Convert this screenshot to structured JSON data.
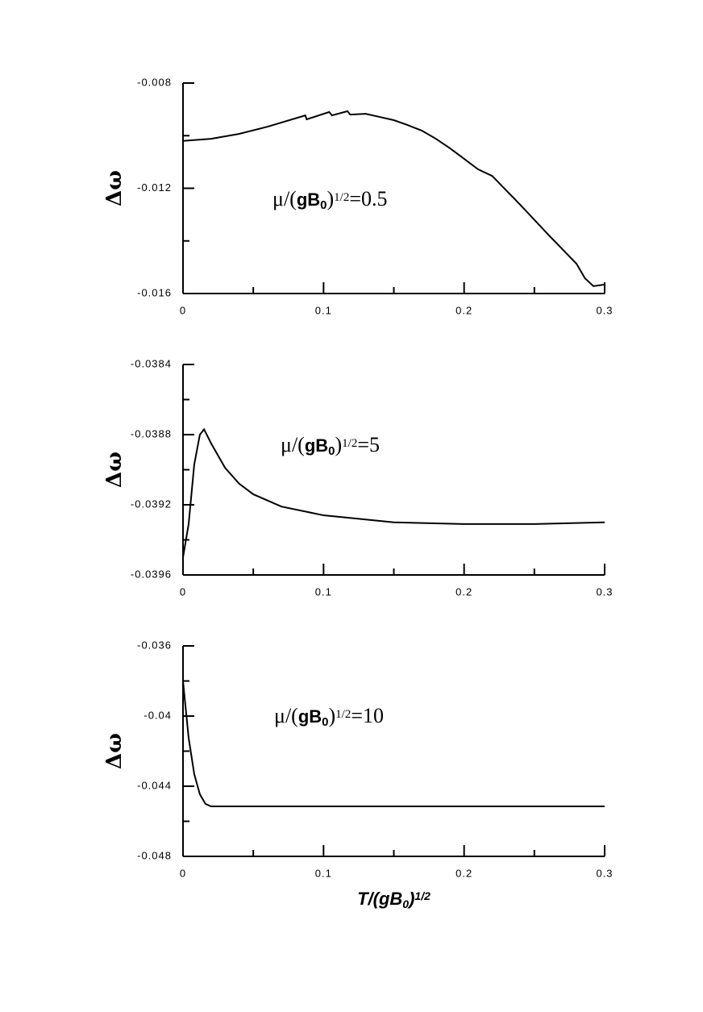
{
  "chart_data": [
    {
      "type": "line",
      "y_label": "Δω",
      "annotation": [
        {
          "text": "μ/("
        },
        {
          "text": "gB",
          "bold": true
        },
        {
          "text": "0",
          "bold": true,
          "sub": true
        },
        {
          "text": ")"
        },
        {
          "text": "1/2",
          "sup": true
        },
        {
          "text": "=0.5"
        }
      ],
      "x": [
        0,
        0.02,
        0.04,
        0.06,
        0.087,
        0.088,
        0.104,
        0.106,
        0.117,
        0.119,
        0.13,
        0.14,
        0.15,
        0.16,
        0.17,
        0.18,
        0.19,
        0.2,
        0.21,
        0.22,
        0.24,
        0.26,
        0.28,
        0.286,
        0.292,
        0.3
      ],
      "series": [
        {
          "color": "#000000",
          "values": [
            -0.0102,
            -0.01012,
            -0.00993,
            -0.00966,
            -0.00923,
            -0.00938,
            -0.0091,
            -0.00923,
            -0.00907,
            -0.0092,
            -0.00917,
            -0.00929,
            -0.00941,
            -0.0096,
            -0.00981,
            -0.01012,
            -0.01048,
            -0.01088,
            -0.01128,
            -0.01153,
            -0.01263,
            -0.01377,
            -0.01487,
            -0.01542,
            -0.01572,
            -0.01566
          ]
        }
      ],
      "xlim": [
        0,
        0.3
      ],
      "xticks": [
        0,
        0.1,
        0.2,
        0.3
      ],
      "xminor": [
        0.05,
        0.15,
        0.25
      ],
      "ylim": [
        -0.016,
        -0.008
      ],
      "yticks": [
        -0.008,
        -0.012,
        -0.016
      ],
      "yminor": [
        -0.01,
        -0.014
      ]
    },
    {
      "type": "line",
      "y_label": "Δω",
      "annotation": [
        {
          "text": "μ/("
        },
        {
          "text": "gB",
          "bold": true
        },
        {
          "text": "0",
          "bold": true,
          "sub": true
        },
        {
          "text": ")"
        },
        {
          "text": "1/2",
          "sup": true
        },
        {
          "text": "=5"
        }
      ],
      "x": [
        0,
        0.004,
        0.008,
        0.012,
        0.015,
        0.02,
        0.03,
        0.04,
        0.05,
        0.07,
        0.1,
        0.15,
        0.2,
        0.25,
        0.3
      ],
      "series": [
        {
          "color": "#000000",
          "values": [
            -0.0395,
            -0.03931,
            -0.03897,
            -0.0388,
            -0.03877,
            -0.03885,
            -0.03899,
            -0.03908,
            -0.03914,
            -0.03921,
            -0.03926,
            -0.0393,
            -0.03931,
            -0.03931,
            -0.0393
          ]
        }
      ],
      "xlim": [
        0,
        0.3
      ],
      "xticks": [
        0,
        0.1,
        0.2,
        0.3
      ],
      "xminor": [
        0.05,
        0.15,
        0.25
      ],
      "ylim": [
        -0.0396,
        -0.0384
      ],
      "yticks": [
        -0.0384,
        -0.0388,
        -0.0392,
        -0.0396
      ],
      "yminor": [
        -0.0386,
        -0.039,
        -0.0394
      ]
    },
    {
      "type": "line",
      "y_label": "Δω",
      "annotation": [
        {
          "text": "μ/("
        },
        {
          "text": "gB",
          "bold": true
        },
        {
          "text": "0",
          "bold": true,
          "sub": true
        },
        {
          "text": ")"
        },
        {
          "text": "1/2",
          "sup": true
        },
        {
          "text": "=10"
        }
      ],
      "x_label": [
        {
          "text": "T/(gB",
          "bold": true,
          "italic": true
        },
        {
          "text": "0",
          "bold": true,
          "italic": true,
          "sub": true
        },
        {
          "text": ")",
          "bold": true,
          "italic": true
        },
        {
          "text": "1/2",
          "bold": true,
          "italic": true,
          "sup": true
        }
      ],
      "x": [
        0,
        0.004,
        0.008,
        0.012,
        0.016,
        0.02,
        0.3
      ],
      "series": [
        {
          "color": "#000000",
          "values": [
            -0.03802,
            -0.04124,
            -0.04331,
            -0.04446,
            -0.04501,
            -0.04515,
            -0.04515
          ]
        }
      ],
      "xlim": [
        0,
        0.3
      ],
      "xticks": [
        0,
        0.1,
        0.2,
        0.3
      ],
      "xminor": [
        0.05,
        0.15,
        0.25
      ],
      "ylim": [
        -0.048,
        -0.036
      ],
      "yticks": [
        -0.036,
        -0.04,
        -0.044,
        -0.048
      ],
      "yminor": [
        -0.038,
        -0.042,
        -0.046
      ]
    }
  ]
}
